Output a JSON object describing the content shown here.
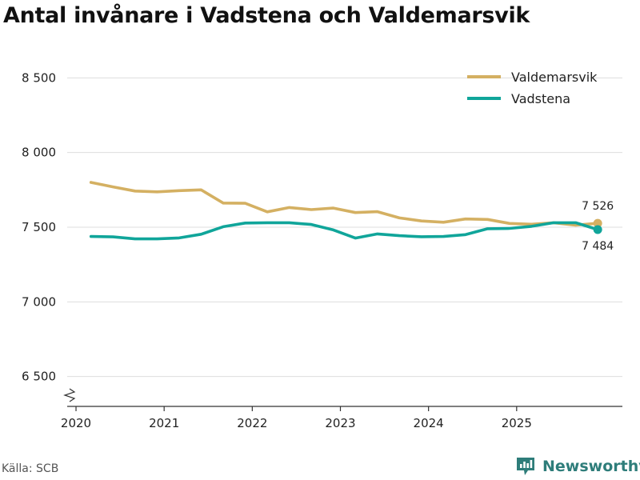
{
  "chart_data": {
    "type": "line",
    "title": "Antal invånare i Vadstena och Valdemarsvik",
    "x_labels": [
      "2020",
      "2021",
      "2022",
      "2023",
      "2024",
      "2025"
    ],
    "x_range": [
      2019.9,
      2026.2
    ],
    "ylim": [
      6300,
      8700
    ],
    "y_ticks": [
      6500,
      7000,
      7500,
      8000,
      8500
    ],
    "y_tick_labels": [
      "6 500",
      "7 000",
      "7 500",
      "8 000",
      "8 500"
    ],
    "y_axis_broken": true,
    "grid": true,
    "legend_position": "top-right",
    "series": [
      {
        "name": "Valdemarsvik",
        "color": "#d4b062",
        "x": [
          2020.17,
          2020.42,
          2020.67,
          2020.92,
          2021.17,
          2021.42,
          2021.67,
          2021.92,
          2022.17,
          2022.42,
          2022.67,
          2022.92,
          2023.17,
          2023.42,
          2023.67,
          2023.92,
          2024.17,
          2024.42,
          2024.67,
          2024.92,
          2025.17,
          2025.42,
          2025.67,
          2025.92
        ],
        "values": [
          7800,
          7770,
          7742,
          7737,
          7745,
          7750,
          7662,
          7660,
          7603,
          7632,
          7618,
          7628,
          7598,
          7604,
          7562,
          7542,
          7533,
          7555,
          7552,
          7525,
          7520,
          7530,
          7514,
          7526
        ],
        "end_label": "7 526"
      },
      {
        "name": "Vadstena",
        "color": "#10a59a",
        "x": [
          2020.17,
          2020.42,
          2020.67,
          2020.92,
          2021.17,
          2021.42,
          2021.67,
          2021.92,
          2022.17,
          2022.42,
          2022.67,
          2022.92,
          2023.17,
          2023.42,
          2023.67,
          2023.92,
          2024.17,
          2024.42,
          2024.67,
          2024.92,
          2025.17,
          2025.42,
          2025.67,
          2025.92
        ],
        "values": [
          7438,
          7435,
          7422,
          7422,
          7428,
          7453,
          7503,
          7528,
          7530,
          7530,
          7518,
          7482,
          7427,
          7455,
          7443,
          7436,
          7438,
          7450,
          7490,
          7492,
          7506,
          7530,
          7530,
          7484
        ],
        "end_label": "7 484"
      }
    ]
  },
  "footer": {
    "source": "Källa: SCB",
    "brand": "Newsworthy",
    "brand_icon": "newsworthy-logo-icon",
    "brand_color": "#2e7d7a"
  }
}
